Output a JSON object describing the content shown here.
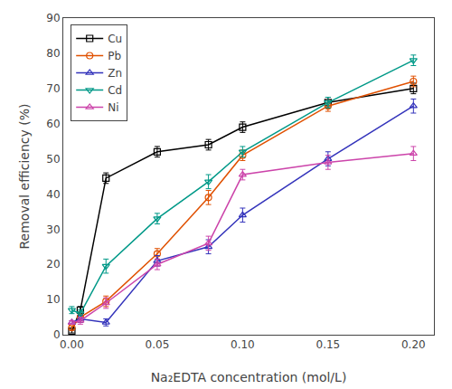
{
  "chart_data": {
    "type": "line",
    "x": [
      0.0,
      0.005,
      0.02,
      0.05,
      0.08,
      0.1,
      0.15,
      0.2
    ],
    "series": [
      {
        "name": "Cu",
        "color": "#000000",
        "marker": "square",
        "values": [
          1.0,
          7.0,
          44.5,
          52.0,
          54.0,
          59.0,
          66.0,
          70.0
        ],
        "error": [
          0.5,
          1.0,
          1.5,
          1.5,
          1.5,
          1.5,
          1.5,
          1.5
        ]
      },
      {
        "name": "Pb",
        "color": "#e05000",
        "marker": "circle",
        "values": [
          2.0,
          5.0,
          9.5,
          23.0,
          39.0,
          51.0,
          65.0,
          72.0
        ],
        "error": [
          0.5,
          1.5,
          1.5,
          1.5,
          2.0,
          1.5,
          1.5,
          1.5
        ]
      },
      {
        "name": "Zn",
        "color": "#3333bb",
        "marker": "triangle-up",
        "values": [
          3.5,
          4.5,
          3.5,
          21.0,
          25.0,
          34.0,
          50.0,
          65.0
        ],
        "error": [
          0.5,
          1.0,
          1.0,
          1.5,
          2.0,
          2.0,
          2.0,
          2.0
        ]
      },
      {
        "name": "Cd",
        "color": "#009988",
        "marker": "triangle-down",
        "values": [
          7.0,
          6.0,
          19.5,
          33.0,
          43.5,
          52.0,
          66.0,
          78.0
        ],
        "error": [
          1.0,
          1.0,
          2.0,
          1.5,
          2.0,
          1.5,
          1.5,
          1.5
        ]
      },
      {
        "name": "Ni",
        "color": "#cc44aa",
        "marker": "triangle-up",
        "values": [
          3.5,
          4.0,
          9.0,
          20.0,
          26.0,
          45.5,
          49.0,
          51.5
        ],
        "error": [
          0.5,
          1.0,
          1.5,
          1.5,
          2.0,
          1.5,
          2.0,
          2.0
        ]
      }
    ],
    "x_label": "Na₂EDTA concentration (mol/L)",
    "y_label": "Removal efficiency (%)",
    "xlim": [
      -0.005,
      0.212
    ],
    "ylim": [
      0,
      90
    ],
    "xticks": [
      {
        "value": 0.0,
        "label": "0.00"
      },
      0.05,
      {
        "value": 0.1,
        "label": "0.10"
      },
      0.15,
      {
        "value": 0.2,
        "label": "0.20"
      }
    ],
    "yticks": [
      0,
      10,
      20,
      30,
      40,
      50,
      60,
      70,
      80,
      90
    ],
    "grid": false,
    "legend": "upper left"
  }
}
